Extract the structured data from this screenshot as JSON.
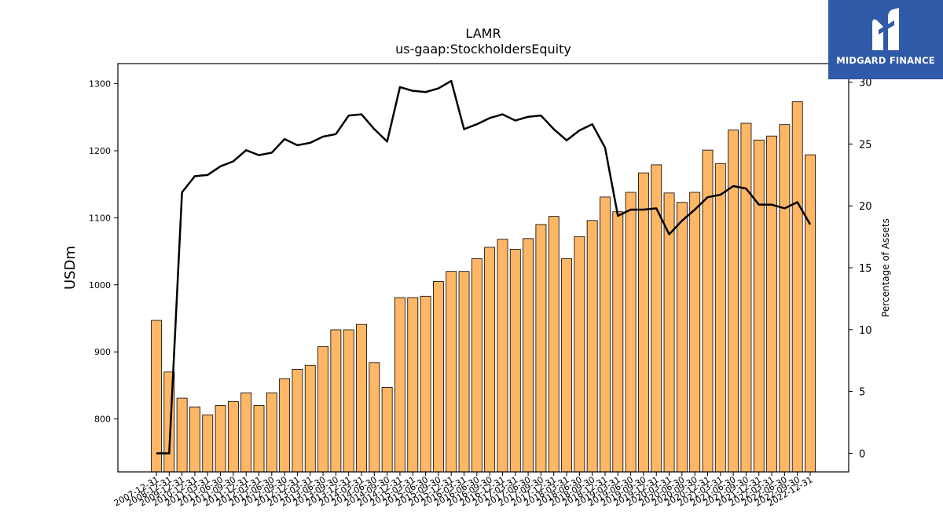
{
  "chart_data": {
    "type": "bar",
    "title": "LAMR",
    "subtitle": "us-gaap:StockholdersEquity",
    "ylabel": "USDm",
    "y2label": "Percentage of Assets",
    "ylim": [
      721,
      1330
    ],
    "y2lim": [
      -1.5,
      31.5
    ],
    "yticks": [
      800,
      900,
      1000,
      1100,
      1200,
      1300
    ],
    "y2ticks": [
      0,
      5,
      10,
      15,
      20,
      25,
      30
    ],
    "bar_color": "#ffb766",
    "line_color": "#000000",
    "categories": [
      "2007-12-31",
      "2008-12-31",
      "2009-12-31",
      "2010-12-31",
      "2011-03-31",
      "2011-06-30",
      "2011-09-30",
      "2011-12-31",
      "2012-03-31",
      "2012-06-30",
      "2012-09-30",
      "2012-12-31",
      "2013-03-31",
      "2013-06-30",
      "2013-09-30",
      "2013-12-31",
      "2014-03-31",
      "2014-06-30",
      "2014-09-30",
      "2014-12-31",
      "2015-03-31",
      "2015-06-30",
      "2015-09-30",
      "2015-12-31",
      "2016-03-31",
      "2016-06-30",
      "2016-09-30",
      "2016-12-31",
      "2017-03-31",
      "2017-06-30",
      "2017-09-30",
      "2017-12-31",
      "2018-03-31",
      "2018-06-30",
      "2018-09-30",
      "2018-12-31",
      "2019-03-31",
      "2019-06-30",
      "2019-09-30",
      "2019-12-31",
      "2020-03-31",
      "2020-06-30",
      "2020-09-30",
      "2020-12-31",
      "2021-03-31",
      "2021-06-30",
      "2021-09-30",
      "2021-12-31",
      "2022-03-31",
      "2022-06-30",
      "2022-09-30",
      "2022-12-31"
    ],
    "series": [
      {
        "values": [
          947,
          870,
          831,
          818,
          806,
          820,
          826,
          839,
          820,
          839,
          860,
          874,
          880,
          908,
          933,
          933,
          941,
          884,
          847,
          981,
          981,
          983,
          1005,
          1020,
          1020,
          1039,
          1056,
          1068,
          1053,
          1069,
          1090,
          1102,
          1039,
          1072,
          1096,
          1131,
          1109,
          1138,
          1167,
          1179,
          1137,
          1123,
          1138,
          1201,
          1181,
          1231,
          1241,
          1216,
          1222,
          1239,
          1273,
          1194
        ]
      },
      {
        "values": [
          0,
          0,
          21.1,
          22.4,
          22.5,
          23.2,
          23.6,
          24.5,
          24.1,
          24.3,
          25.4,
          24.9,
          25.1,
          25.6,
          25.8,
          27.3,
          27.4,
          26.2,
          25.2,
          29.6,
          29.3,
          29.2,
          29.5,
          30.1,
          26.2,
          26.6,
          27.1,
          27.4,
          26.9,
          27.2,
          27.3,
          26.2,
          25.3,
          26.1,
          26.6,
          24.7,
          19.2,
          19.7,
          19.7,
          19.8,
          17.7,
          18.8,
          19.7,
          20.7,
          20.9,
          21.6,
          21.4,
          20.1,
          20.1,
          19.8,
          20.3,
          18.5
        ]
      }
    ]
  },
  "logo": {
    "text": "MIDGARD FINANCE"
  }
}
